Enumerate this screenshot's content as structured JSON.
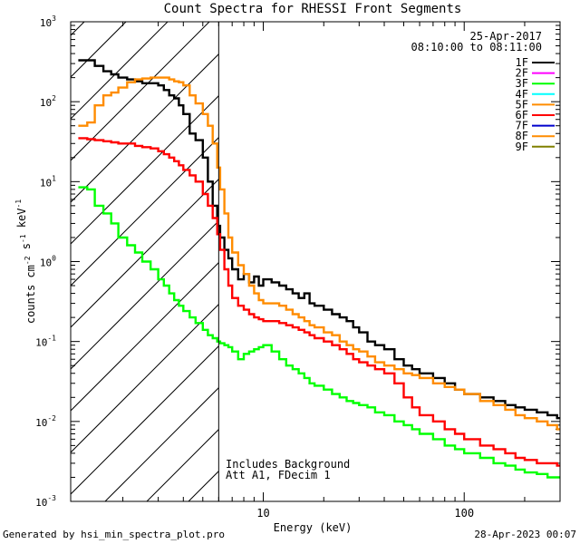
{
  "chart_data": {
    "type": "line",
    "title": "Count Spectra for RHESSI Front Segments",
    "xlabel": "Energy (keV)",
    "ylabel": "counts cm-2 s-1 keV-1",
    "xscale": "log",
    "yscale": "log",
    "xlim": [
      1.1,
      300
    ],
    "ylim": [
      0.001,
      1000
    ],
    "x_tick_labels": [
      "10",
      "100"
    ],
    "y_tick_labels": [
      "10-3",
      "10-2",
      "10-1",
      "100",
      "101",
      "102",
      "103"
    ],
    "legend_position": "top-right",
    "date": "25-Apr-2017",
    "time_range": "08:10:00 to 08:11:00",
    "legend": [
      {
        "name": "1F",
        "color": "#000000"
      },
      {
        "name": "2F",
        "color": "#ff00ff"
      },
      {
        "name": "3F",
        "color": "#00ff00"
      },
      {
        "name": "4F",
        "color": "#00ffff"
      },
      {
        "name": "5F",
        "color": "#ff8c00"
      },
      {
        "name": "6F",
        "color": "#ff0000"
      },
      {
        "name": "7F",
        "color": "#0000cc"
      },
      {
        "name": "8F",
        "color": "#ff8c00"
      },
      {
        "name": "9F",
        "color": "#808000"
      }
    ],
    "threshold_line_x": 6.0,
    "annotations": [
      "Includes Background",
      "Att A1, FDecim 1"
    ],
    "series": [
      {
        "name": "1F",
        "color": "#000000",
        "points": [
          [
            1.2,
            330
          ],
          [
            1.33,
            330
          ],
          [
            1.45,
            280
          ],
          [
            1.6,
            240
          ],
          [
            1.75,
            220
          ],
          [
            1.9,
            200
          ],
          [
            2.1,
            190
          ],
          [
            2.3,
            180
          ],
          [
            2.5,
            170
          ],
          [
            2.75,
            170
          ],
          [
            3.0,
            160
          ],
          [
            3.2,
            140
          ],
          [
            3.4,
            120
          ],
          [
            3.6,
            110
          ],
          [
            3.8,
            90
          ],
          [
            4.0,
            70
          ],
          [
            4.3,
            40
          ],
          [
            4.6,
            33
          ],
          [
            5.0,
            20
          ],
          [
            5.3,
            10
          ],
          [
            5.6,
            5
          ],
          [
            5.9,
            2.8
          ],
          [
            6.1,
            2
          ],
          [
            6.4,
            1.4
          ],
          [
            6.7,
            1.1
          ],
          [
            7.0,
            0.8
          ],
          [
            7.5,
            0.6
          ],
          [
            8.0,
            0.7
          ],
          [
            8.5,
            0.55
          ],
          [
            9.0,
            0.65
          ],
          [
            9.5,
            0.5
          ],
          [
            10.0,
            0.6
          ],
          [
            11,
            0.55
          ],
          [
            12,
            0.5
          ],
          [
            13,
            0.45
          ],
          [
            14,
            0.4
          ],
          [
            15,
            0.35
          ],
          [
            16,
            0.4
          ],
          [
            17,
            0.3
          ],
          [
            18,
            0.28
          ],
          [
            20,
            0.25
          ],
          [
            22,
            0.22
          ],
          [
            24,
            0.2
          ],
          [
            26,
            0.18
          ],
          [
            28,
            0.15
          ],
          [
            30,
            0.13
          ],
          [
            33,
            0.1
          ],
          [
            36,
            0.09
          ],
          [
            40,
            0.08
          ],
          [
            45,
            0.06
          ],
          [
            50,
            0.05
          ],
          [
            55,
            0.045
          ],
          [
            60,
            0.04
          ],
          [
            70,
            0.035
          ],
          [
            80,
            0.03
          ],
          [
            90,
            0.025
          ],
          [
            100,
            0.022
          ],
          [
            120,
            0.02
          ],
          [
            140,
            0.018
          ],
          [
            160,
            0.016
          ],
          [
            180,
            0.015
          ],
          [
            200,
            0.014
          ],
          [
            230,
            0.013
          ],
          [
            260,
            0.012
          ],
          [
            290,
            0.011
          ]
        ]
      },
      {
        "name": "8F",
        "color": "#ff8c00",
        "points": [
          [
            1.2,
            50
          ],
          [
            1.33,
            55
          ],
          [
            1.45,
            90
          ],
          [
            1.6,
            120
          ],
          [
            1.75,
            130
          ],
          [
            1.9,
            150
          ],
          [
            2.1,
            175
          ],
          [
            2.3,
            190
          ],
          [
            2.5,
            195
          ],
          [
            2.75,
            200
          ],
          [
            3.0,
            200
          ],
          [
            3.2,
            200
          ],
          [
            3.4,
            190
          ],
          [
            3.6,
            180
          ],
          [
            3.8,
            175
          ],
          [
            4.0,
            160
          ],
          [
            4.3,
            120
          ],
          [
            4.6,
            95
          ],
          [
            5.0,
            70
          ],
          [
            5.3,
            50
          ],
          [
            5.6,
            30
          ],
          [
            5.9,
            15
          ],
          [
            6.1,
            8
          ],
          [
            6.4,
            4
          ],
          [
            6.7,
            2
          ],
          [
            7.0,
            1.3
          ],
          [
            7.5,
            0.9
          ],
          [
            8.0,
            0.7
          ],
          [
            8.5,
            0.5
          ],
          [
            9.0,
            0.4
          ],
          [
            9.5,
            0.33
          ],
          [
            10,
            0.3
          ],
          [
            11,
            0.3
          ],
          [
            12,
            0.28
          ],
          [
            13,
            0.25
          ],
          [
            14,
            0.22
          ],
          [
            15,
            0.2
          ],
          [
            16,
            0.18
          ],
          [
            17,
            0.16
          ],
          [
            18,
            0.15
          ],
          [
            20,
            0.13
          ],
          [
            22,
            0.12
          ],
          [
            24,
            0.1
          ],
          [
            26,
            0.09
          ],
          [
            28,
            0.08
          ],
          [
            30,
            0.075
          ],
          [
            33,
            0.065
          ],
          [
            36,
            0.055
          ],
          [
            40,
            0.05
          ],
          [
            45,
            0.045
          ],
          [
            50,
            0.04
          ],
          [
            55,
            0.038
          ],
          [
            60,
            0.035
          ],
          [
            70,
            0.03
          ],
          [
            80,
            0.027
          ],
          [
            90,
            0.025
          ],
          [
            100,
            0.022
          ],
          [
            120,
            0.018
          ],
          [
            140,
            0.016
          ],
          [
            160,
            0.014
          ],
          [
            180,
            0.012
          ],
          [
            200,
            0.011
          ],
          [
            230,
            0.01
          ],
          [
            260,
            0.009
          ],
          [
            290,
            0.008
          ]
        ]
      },
      {
        "name": "6F",
        "color": "#ff0000",
        "points": [
          [
            1.2,
            35
          ],
          [
            1.33,
            34
          ],
          [
            1.45,
            33
          ],
          [
            1.6,
            32
          ],
          [
            1.75,
            31
          ],
          [
            1.9,
            30
          ],
          [
            2.1,
            30
          ],
          [
            2.3,
            28
          ],
          [
            2.5,
            27
          ],
          [
            2.75,
            26
          ],
          [
            3.0,
            24
          ],
          [
            3.2,
            22
          ],
          [
            3.4,
            20
          ],
          [
            3.6,
            18
          ],
          [
            3.8,
            16
          ],
          [
            4.0,
            14
          ],
          [
            4.3,
            12
          ],
          [
            4.6,
            10
          ],
          [
            5.0,
            7
          ],
          [
            5.3,
            5
          ],
          [
            5.6,
            3.5
          ],
          [
            5.9,
            2.2
          ],
          [
            6.1,
            1.4
          ],
          [
            6.4,
            0.8
          ],
          [
            6.7,
            0.5
          ],
          [
            7.0,
            0.35
          ],
          [
            7.5,
            0.28
          ],
          [
            8.0,
            0.25
          ],
          [
            8.5,
            0.22
          ],
          [
            9.0,
            0.2
          ],
          [
            9.5,
            0.19
          ],
          [
            10,
            0.18
          ],
          [
            11,
            0.18
          ],
          [
            12,
            0.17
          ],
          [
            13,
            0.16
          ],
          [
            14,
            0.15
          ],
          [
            15,
            0.14
          ],
          [
            16,
            0.13
          ],
          [
            17,
            0.12
          ],
          [
            18,
            0.11
          ],
          [
            20,
            0.1
          ],
          [
            22,
            0.09
          ],
          [
            24,
            0.08
          ],
          [
            26,
            0.07
          ],
          [
            28,
            0.06
          ],
          [
            30,
            0.055
          ],
          [
            33,
            0.05
          ],
          [
            36,
            0.045
          ],
          [
            40,
            0.04
          ],
          [
            45,
            0.03
          ],
          [
            50,
            0.02
          ],
          [
            55,
            0.015
          ],
          [
            60,
            0.012
          ],
          [
            70,
            0.01
          ],
          [
            80,
            0.008
          ],
          [
            90,
            0.007
          ],
          [
            100,
            0.006
          ],
          [
            120,
            0.005
          ],
          [
            140,
            0.0045
          ],
          [
            160,
            0.004
          ],
          [
            180,
            0.0035
          ],
          [
            200,
            0.0033
          ],
          [
            230,
            0.003
          ],
          [
            260,
            0.003
          ],
          [
            290,
            0.0028
          ]
        ]
      },
      {
        "name": "3F",
        "color": "#00ff00",
        "points": [
          [
            1.2,
            8.5
          ],
          [
            1.33,
            8
          ],
          [
            1.45,
            5
          ],
          [
            1.6,
            4
          ],
          [
            1.75,
            3
          ],
          [
            1.9,
            2
          ],
          [
            2.1,
            1.6
          ],
          [
            2.3,
            1.3
          ],
          [
            2.5,
            1
          ],
          [
            2.75,
            0.8
          ],
          [
            3.0,
            0.6
          ],
          [
            3.2,
            0.5
          ],
          [
            3.4,
            0.4
          ],
          [
            3.6,
            0.33
          ],
          [
            3.8,
            0.28
          ],
          [
            4.0,
            0.24
          ],
          [
            4.3,
            0.2
          ],
          [
            4.6,
            0.17
          ],
          [
            5.0,
            0.14
          ],
          [
            5.3,
            0.12
          ],
          [
            5.6,
            0.11
          ],
          [
            5.9,
            0.1
          ],
          [
            6.1,
            0.095
          ],
          [
            6.4,
            0.09
          ],
          [
            6.7,
            0.085
          ],
          [
            7.0,
            0.075
          ],
          [
            7.5,
            0.06
          ],
          [
            8.0,
            0.07
          ],
          [
            8.5,
            0.075
          ],
          [
            9.0,
            0.08
          ],
          [
            9.5,
            0.085
          ],
          [
            10,
            0.09
          ],
          [
            11,
            0.075
          ],
          [
            12,
            0.06
          ],
          [
            13,
            0.05
          ],
          [
            14,
            0.045
          ],
          [
            15,
            0.04
          ],
          [
            16,
            0.035
          ],
          [
            17,
            0.03
          ],
          [
            18,
            0.028
          ],
          [
            20,
            0.025
          ],
          [
            22,
            0.022
          ],
          [
            24,
            0.02
          ],
          [
            26,
            0.018
          ],
          [
            28,
            0.017
          ],
          [
            30,
            0.016
          ],
          [
            33,
            0.015
          ],
          [
            36,
            0.013
          ],
          [
            40,
            0.012
          ],
          [
            45,
            0.01
          ],
          [
            50,
            0.009
          ],
          [
            55,
            0.008
          ],
          [
            60,
            0.007
          ],
          [
            70,
            0.006
          ],
          [
            80,
            0.005
          ],
          [
            90,
            0.0045
          ],
          [
            100,
            0.004
          ],
          [
            120,
            0.0035
          ],
          [
            140,
            0.003
          ],
          [
            160,
            0.0028
          ],
          [
            180,
            0.0025
          ],
          [
            200,
            0.0023
          ],
          [
            230,
            0.0022
          ],
          [
            260,
            0.002
          ],
          [
            290,
            0.002
          ]
        ]
      }
    ]
  },
  "footer": {
    "generated_by": "Generated by hsi_min_spectra_plot.pro",
    "timestamp": "28-Apr-2023 00:07"
  }
}
